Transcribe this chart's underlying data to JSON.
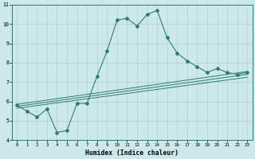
{
  "xlabel": "Humidex (Indice chaleur)",
  "ylabel": "",
  "bg_color": "#cce8ea",
  "line_color": "#2a7d6e",
  "grid_color": "#aacfcf",
  "main_line_x": [
    0,
    1,
    2,
    3,
    4,
    5,
    6,
    7,
    8,
    9,
    10,
    11,
    12,
    13,
    14,
    15,
    16,
    17,
    18,
    19,
    20,
    21,
    22,
    23
  ],
  "main_line_y": [
    5.8,
    5.5,
    5.2,
    5.6,
    4.4,
    4.5,
    5.9,
    5.9,
    7.3,
    8.6,
    10.2,
    10.3,
    9.9,
    10.5,
    10.7,
    9.3,
    8.5,
    8.1,
    7.8,
    7.5,
    7.7,
    7.5,
    7.4,
    7.5
  ],
  "linear_lines": [
    {
      "x": [
        0,
        23
      ],
      "y": [
        5.85,
        7.55
      ]
    },
    {
      "x": [
        0,
        23
      ],
      "y": [
        5.75,
        7.4
      ]
    },
    {
      "x": [
        0,
        23
      ],
      "y": [
        5.65,
        7.25
      ]
    }
  ],
  "xlim": [
    -0.5,
    23.5
  ],
  "ylim": [
    4,
    11
  ],
  "yticks": [
    4,
    5,
    6,
    7,
    8,
    9,
    10,
    11
  ],
  "xticks": [
    0,
    1,
    2,
    3,
    4,
    5,
    6,
    7,
    8,
    9,
    10,
    11,
    12,
    13,
    14,
    15,
    16,
    17,
    18,
    19,
    20,
    21,
    22,
    23
  ]
}
